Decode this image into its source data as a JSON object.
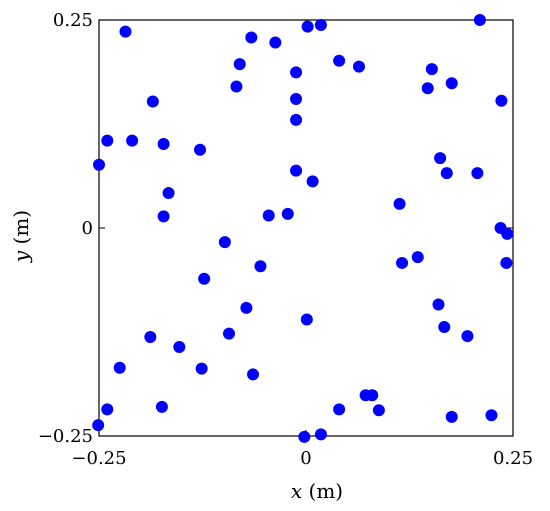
{
  "chart_data": {
    "type": "scatter",
    "xlabel": {
      "var": "x",
      "unit": " (m)"
    },
    "ylabel": {
      "var": "y",
      "unit": " (m)"
    },
    "xlim": [
      -0.25,
      0.25
    ],
    "ylim": [
      -0.25,
      0.25
    ],
    "xticks": [
      {
        "value": -0.25,
        "label": "−0.25"
      },
      {
        "value": 0,
        "label": "0"
      },
      {
        "value": 0.25,
        "label": "0.25"
      }
    ],
    "yticks": [
      {
        "value": -0.25,
        "label": "−0.25"
      },
      {
        "value": 0,
        "label": "0"
      },
      {
        "value": 0.25,
        "label": "0.25"
      }
    ],
    "grid": false,
    "marker_color": "#0000ff",
    "series": [
      {
        "points": [
          [
            -0.218,
            0.236
          ],
          [
            -0.066,
            0.229
          ],
          [
            -0.037,
            0.223
          ],
          [
            -0.08,
            0.197
          ],
          [
            -0.084,
            0.17
          ],
          [
            -0.012,
            0.187
          ],
          [
            0.002,
            0.242
          ],
          [
            0.018,
            0.244
          ],
          [
            0.04,
            0.201
          ],
          [
            0.064,
            0.194
          ],
          [
            0.21,
            0.25
          ],
          [
            0.152,
            0.191
          ],
          [
            0.176,
            0.174
          ],
          [
            0.147,
            0.168
          ],
          [
            0.236,
            0.153
          ],
          [
            -0.185,
            0.152
          ],
          [
            -0.012,
            0.155
          ],
          [
            -0.012,
            0.13
          ],
          [
            -0.24,
            0.105
          ],
          [
            -0.21,
            0.105
          ],
          [
            -0.172,
            0.101
          ],
          [
            -0.128,
            0.094
          ],
          [
            -0.25,
            0.076
          ],
          [
            0.162,
            0.084
          ],
          [
            0.17,
            0.066
          ],
          [
            0.207,
            0.066
          ],
          [
            -0.012,
            0.069
          ],
          [
            0.008,
            0.056
          ],
          [
            -0.166,
            0.042
          ],
          [
            -0.172,
            0.014
          ],
          [
            -0.045,
            0.015
          ],
          [
            -0.022,
            0.017
          ],
          [
            0.113,
            0.029
          ],
          [
            0.235,
            0.0
          ],
          [
            0.243,
            -0.007
          ],
          [
            -0.098,
            -0.017
          ],
          [
            -0.055,
            -0.046
          ],
          [
            -0.123,
            -0.061
          ],
          [
            0.116,
            -0.042
          ],
          [
            0.135,
            -0.035
          ],
          [
            0.242,
            -0.042
          ],
          [
            -0.072,
            -0.096
          ],
          [
            -0.093,
            -0.127
          ],
          [
            0.001,
            -0.11
          ],
          [
            0.16,
            -0.092
          ],
          [
            0.167,
            -0.119
          ],
          [
            0.195,
            -0.13
          ],
          [
            -0.188,
            -0.131
          ],
          [
            -0.153,
            -0.143
          ],
          [
            -0.225,
            -0.168
          ],
          [
            -0.126,
            -0.169
          ],
          [
            -0.064,
            -0.176
          ],
          [
            -0.24,
            -0.218
          ],
          [
            -0.174,
            -0.215
          ],
          [
            -0.251,
            -0.237
          ],
          [
            0.04,
            -0.218
          ],
          [
            0.072,
            -0.201
          ],
          [
            0.08,
            -0.201
          ],
          [
            0.088,
            -0.219
          ],
          [
            0.176,
            -0.227
          ],
          [
            0.224,
            -0.225
          ],
          [
            -0.002,
            -0.251
          ],
          [
            0.018,
            -0.248
          ]
        ]
      }
    ]
  }
}
